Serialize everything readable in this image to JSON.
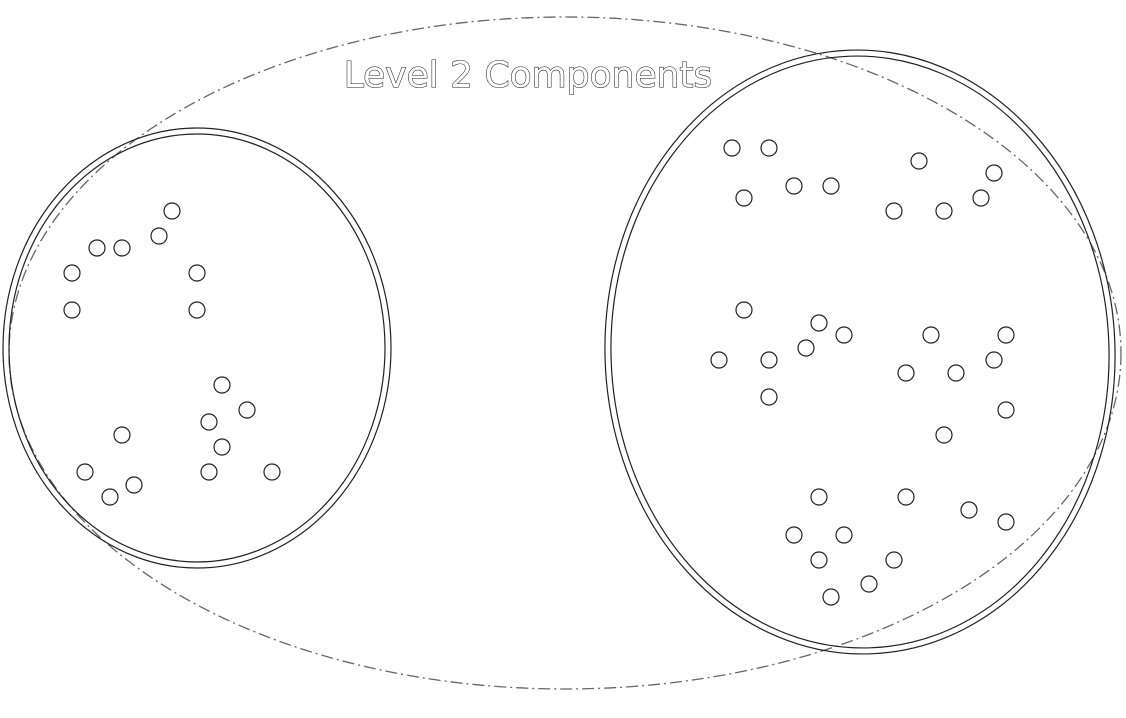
{
  "title": "Level 2 Components",
  "colors": {
    "background": "#ffffff",
    "line": "#222222",
    "dashed_boundary": "#666666"
  },
  "components": [
    {
      "id": "left-component",
      "node_count": 20
    },
    {
      "id": "right-component",
      "node_count": 35
    }
  ]
}
